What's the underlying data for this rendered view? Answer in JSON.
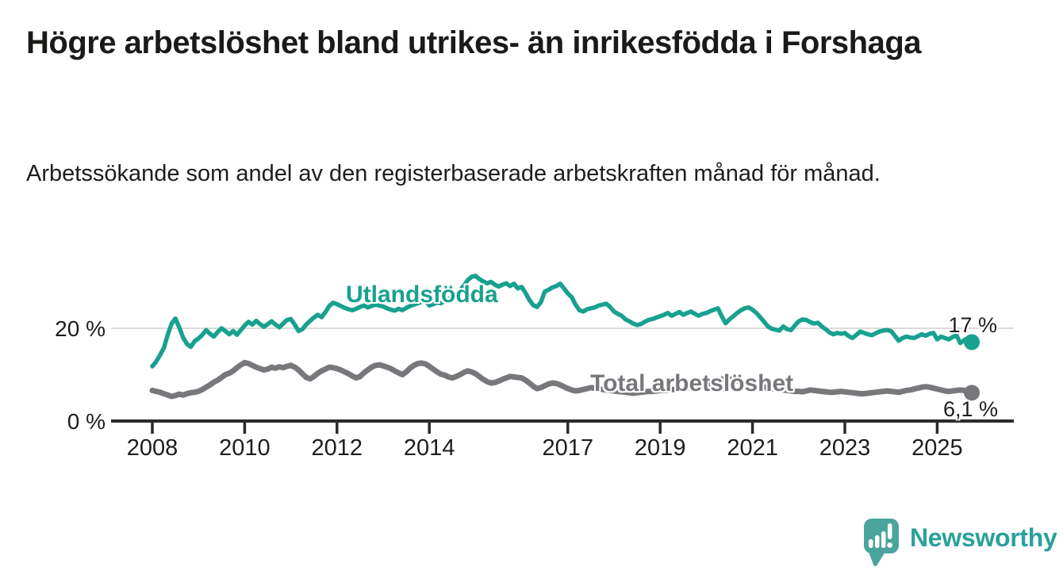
{
  "header": {
    "title": "Högre arbetslöshet bland utrikes- än inrikesfödda i Forshaga",
    "subtitle": "Arbetssökande som andel av den registerbaserade arbetskraften månad för månad."
  },
  "chart_data": {
    "type": "line",
    "title": "Högre arbetslöshet bland utrikes- än inrikesfödda i Forshaga",
    "subtitle": "Arbetssökande som andel av den registerbaserade arbetskraften månad för månad.",
    "unit": "%",
    "x_monthly_start": "2008-01",
    "x_monthly_end": "2025-10",
    "ylim": [
      0,
      33
    ],
    "grid": "single horizontal gridline at 20 %",
    "gridline_values": [
      20
    ],
    "legend_position": "inline labels on lines",
    "x_ticks": [
      2008,
      2010,
      2012,
      2014,
      2017,
      2019,
      2021,
      2023,
      2025
    ],
    "y_ticks": [
      {
        "value": 20,
        "label": "20 %"
      },
      {
        "value": 0,
        "label": "0 %"
      }
    ],
    "series": [
      {
        "name": "Utlandsfödda",
        "color": "#18A18F",
        "stroke_width": 5.5,
        "end_label": "17 %",
        "end_value": 17.0,
        "values": [
          11.8,
          12.8,
          14.2,
          15.8,
          18.6,
          21.0,
          22.1,
          20.2,
          18.0,
          16.6,
          16.0,
          17.2,
          17.8,
          18.6,
          19.6,
          18.8,
          18.2,
          19.2,
          20.0,
          19.4,
          18.7,
          19.4,
          18.6,
          19.6,
          20.6,
          21.4,
          20.8,
          21.6,
          20.9,
          20.3,
          20.9,
          21.5,
          20.8,
          20.2,
          21.0,
          21.8,
          22.0,
          20.8,
          19.4,
          19.8,
          20.8,
          21.6,
          22.3,
          22.9,
          22.4,
          23.5,
          24.8,
          25.5,
          25.2,
          24.8,
          24.4,
          24.1,
          23.9,
          24.2,
          24.6,
          24.9,
          24.5,
          24.8,
          25.1,
          24.9,
          24.7,
          24.3,
          24.0,
          23.8,
          24.2,
          23.9,
          24.4,
          24.8,
          25.1,
          25.4,
          25.7,
          25.9,
          24.9,
          25.2,
          25.6,
          25.4,
          25.9,
          26.3,
          26.8,
          27.4,
          28.2,
          29.2,
          30.4,
          31.1,
          31.3,
          30.6,
          30.1,
          29.7,
          30.0,
          29.4,
          29.0,
          29.4,
          29.7,
          29.1,
          29.6,
          28.6,
          28.9,
          27.6,
          26.1,
          25.0,
          24.6,
          25.6,
          27.9,
          28.3,
          28.8,
          29.1,
          29.6,
          28.6,
          27.5,
          26.7,
          25.1,
          23.9,
          23.6,
          24.1,
          24.3,
          24.5,
          24.9,
          25.1,
          25.3,
          24.6,
          23.6,
          23.1,
          22.7,
          21.9,
          21.5,
          21.0,
          20.7,
          20.9,
          21.4,
          21.8,
          22.0,
          22.3,
          22.6,
          22.9,
          23.3,
          22.7,
          23.1,
          23.5,
          22.9,
          23.3,
          23.6,
          23.1,
          22.7,
          23.1,
          23.3,
          23.7,
          24.0,
          24.3,
          22.6,
          21.1,
          21.9,
          22.6,
          23.3,
          23.9,
          24.3,
          24.5,
          24.0,
          23.3,
          22.4,
          21.4,
          20.4,
          19.9,
          19.7,
          19.5,
          20.4,
          19.8,
          19.6,
          20.6,
          21.5,
          21.9,
          21.8,
          21.3,
          21.0,
          21.2,
          20.4,
          19.8,
          19.1,
          18.7,
          19.0,
          18.8,
          19.0,
          18.3,
          17.9,
          18.6,
          19.3,
          19.0,
          18.7,
          18.5,
          18.9,
          19.3,
          19.5,
          19.6,
          19.4,
          18.4,
          17.3,
          17.9,
          18.2,
          18.0,
          17.9,
          18.3,
          18.7,
          18.4,
          18.8,
          19.0,
          17.6,
          18.2,
          17.9,
          17.6,
          18.1,
          18.5,
          16.8,
          17.4,
          17.9,
          17.0
        ]
      },
      {
        "name": "Total arbetslöshet",
        "color": "#77787B",
        "stroke_width": 7,
        "end_label": "6,1 %",
        "end_value": 6.1,
        "values": [
          6.6,
          6.4,
          6.2,
          5.9,
          5.6,
          5.3,
          5.5,
          5.8,
          5.6,
          5.9,
          6.1,
          6.2,
          6.4,
          6.8,
          7.3,
          7.8,
          8.4,
          8.8,
          9.4,
          10.0,
          10.3,
          10.8,
          11.5,
          12.1,
          12.6,
          12.4,
          12.0,
          11.6,
          11.3,
          11.0,
          11.2,
          11.6,
          11.4,
          11.7,
          11.5,
          11.8,
          12.0,
          11.6,
          11.0,
          10.2,
          9.4,
          9.1,
          9.6,
          10.3,
          10.8,
          11.2,
          11.6,
          11.5,
          11.3,
          11.0,
          10.6,
          10.2,
          9.7,
          9.3,
          9.6,
          10.4,
          11.0,
          11.6,
          12.0,
          12.1,
          11.9,
          11.6,
          11.3,
          10.8,
          10.4,
          10.0,
          10.6,
          11.4,
          12.0,
          12.4,
          12.5,
          12.3,
          11.8,
          11.2,
          10.6,
          10.1,
          9.9,
          9.5,
          9.3,
          9.6,
          10.0,
          10.5,
          10.8,
          10.6,
          10.2,
          9.6,
          9.0,
          8.5,
          8.2,
          8.3,
          8.6,
          9.0,
          9.3,
          9.6,
          9.5,
          9.4,
          9.3,
          8.8,
          8.2,
          7.5,
          7.0,
          7.2,
          7.6,
          8.0,
          8.2,
          8.1,
          7.8,
          7.4,
          7.0,
          6.7,
          6.5,
          6.6,
          6.8,
          7.0,
          7.2,
          7.1,
          6.9,
          6.8,
          6.7,
          6.6,
          6.5,
          6.4,
          6.3,
          6.2,
          6.1,
          6.0,
          6.1,
          6.2,
          6.3,
          6.4,
          6.4,
          6.5,
          6.6,
          6.6,
          6.7,
          6.8,
          6.8,
          6.9,
          7.0,
          7.1,
          7.2,
          7.3,
          7.4,
          7.5,
          7.8,
          8.0,
          8.4,
          8.8,
          9.0,
          9.1,
          9.0,
          8.9,
          8.7,
          8.5,
          8.3,
          8.1,
          7.9,
          7.7,
          7.5,
          7.3,
          7.1,
          7.0,
          6.9,
          6.8,
          6.7,
          6.6,
          6.5,
          6.4,
          6.4,
          6.3,
          6.5,
          6.7,
          6.6,
          6.5,
          6.4,
          6.3,
          6.2,
          6.2,
          6.3,
          6.4,
          6.3,
          6.2,
          6.1,
          6.0,
          5.9,
          5.9,
          6.0,
          6.1,
          6.2,
          6.3,
          6.4,
          6.5,
          6.4,
          6.3,
          6.2,
          6.4,
          6.6,
          6.7,
          6.9,
          7.1,
          7.3,
          7.4,
          7.3,
          7.1,
          6.9,
          6.7,
          6.5,
          6.4,
          6.5,
          6.6,
          6.7,
          6.6,
          6.4,
          6.1
        ]
      }
    ],
    "axis_color": "#2B2B2B",
    "gridline_color": "#DBDBDB"
  },
  "branding": {
    "logo_text": "Newsworthy",
    "logo_icon": "newsworthy-bubble-chart-icon",
    "logo_icon_color": "#4BA49D",
    "logo_text_color": "#2AA09A"
  }
}
